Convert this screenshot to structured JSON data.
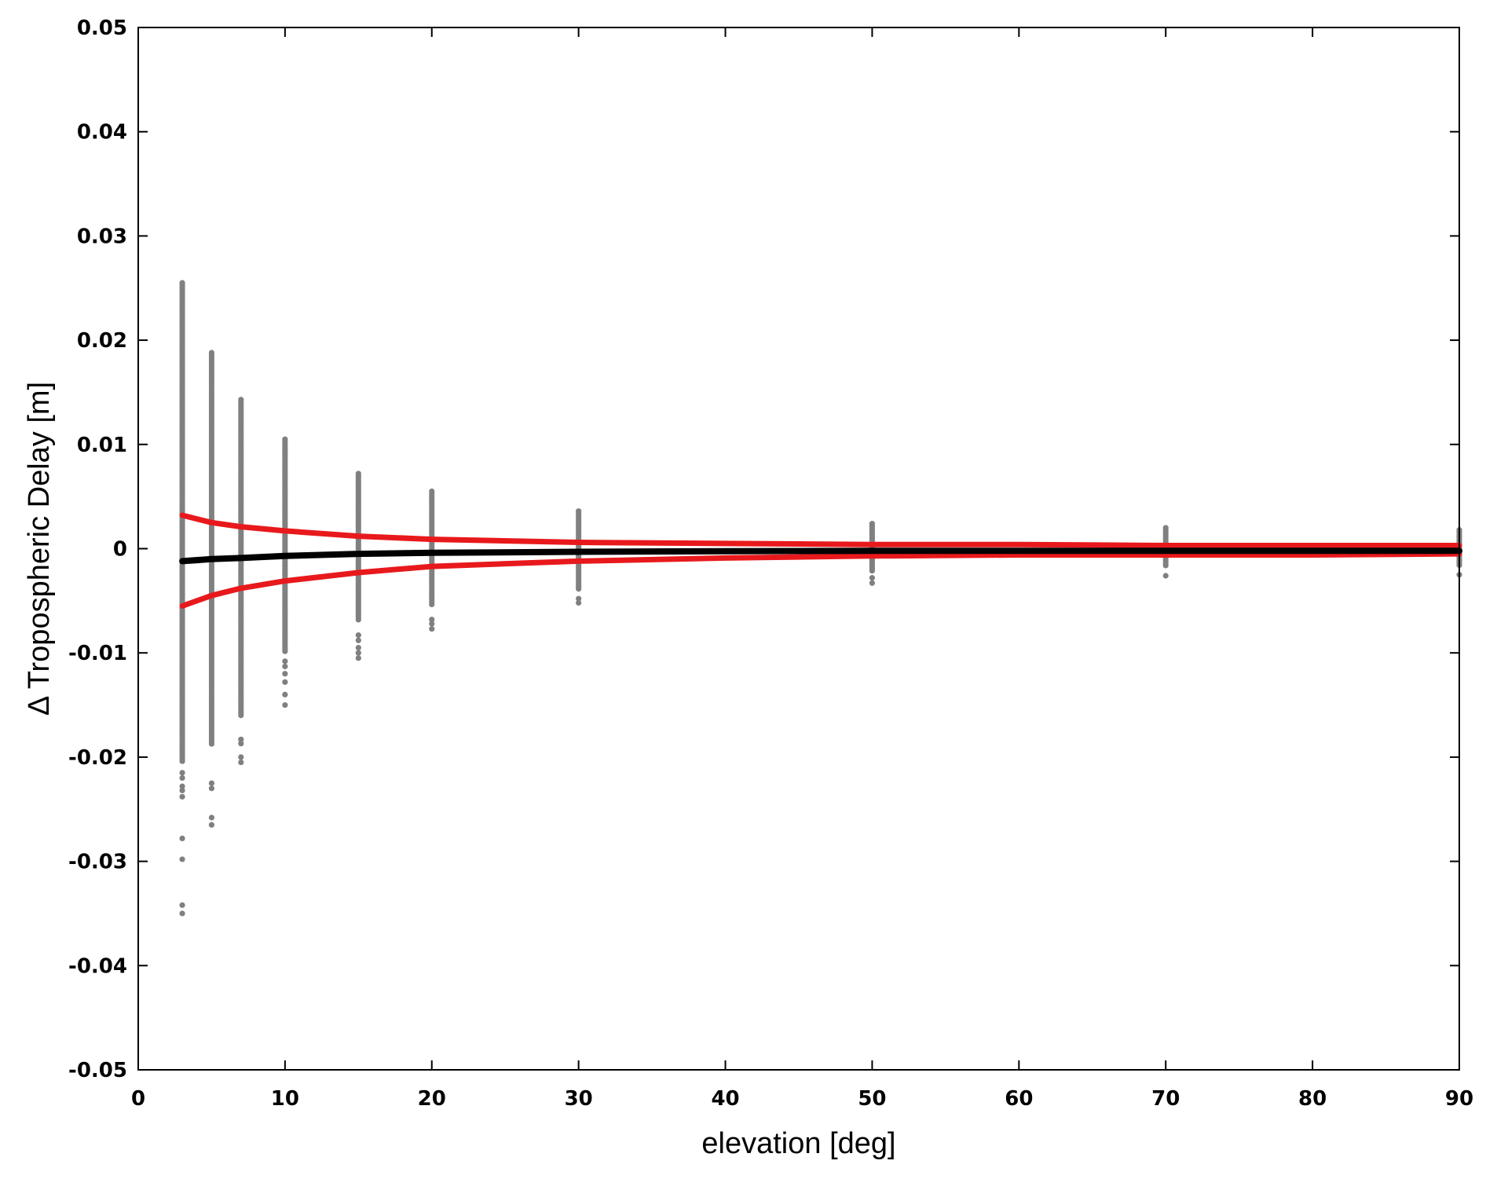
{
  "chart_data": {
    "type": "scatter",
    "xlabel": "elevation [deg]",
    "ylabel": "Δ Tropospheric Delay [m]",
    "xlim": [
      0,
      90
    ],
    "ylim": [
      -0.05,
      0.05
    ],
    "xticks": [
      0,
      10,
      20,
      30,
      40,
      50,
      60,
      70,
      80,
      90
    ],
    "yticks": [
      -0.05,
      -0.04,
      -0.03,
      -0.02,
      -0.01,
      0,
      0.01,
      0.02,
      0.03,
      0.04,
      0.05
    ],
    "xtick_labels": [
      "0",
      "10",
      "20",
      "30",
      "40",
      "50",
      "60",
      "70",
      "80",
      "90"
    ],
    "ytick_labels": [
      "-0.05",
      "-0.04",
      "-0.03",
      "-0.02",
      "-0.01",
      "0",
      "0.01",
      "0.02",
      "0.03",
      "0.04",
      "0.05"
    ],
    "grid": false,
    "colors": {
      "scatter": "#808080",
      "mean": "#000000",
      "bounds": "#e8191c"
    },
    "scatter_columns": [
      {
        "x": 3,
        "dense_min": -0.0205,
        "dense_max": 0.0255,
        "outliers": [
          -0.0215,
          -0.022,
          -0.0228,
          -0.0232,
          -0.0238,
          -0.0278,
          -0.0298,
          -0.0342,
          -0.035
        ]
      },
      {
        "x": 5,
        "dense_min": -0.0188,
        "dense_max": 0.0188,
        "outliers": [
          -0.0225,
          -0.023,
          -0.0258,
          -0.0265
        ]
      },
      {
        "x": 7,
        "dense_min": -0.016,
        "dense_max": 0.0143,
        "outliers": [
          -0.0183,
          -0.0187,
          -0.02,
          -0.0205
        ]
      },
      {
        "x": 10,
        "dense_min": -0.01,
        "dense_max": 0.0105,
        "outliers": [
          -0.0108,
          -0.0113,
          -0.012,
          -0.0128,
          -0.014,
          -0.015
        ]
      },
      {
        "x": 15,
        "dense_min": -0.007,
        "dense_max": 0.0072,
        "outliers": [
          -0.0083,
          -0.0088,
          -0.0095,
          -0.01,
          -0.0105
        ]
      },
      {
        "x": 20,
        "dense_min": -0.0055,
        "dense_max": 0.0055,
        "outliers": [
          -0.0068,
          -0.0072,
          -0.0077
        ]
      },
      {
        "x": 30,
        "dense_min": -0.004,
        "dense_max": 0.0036,
        "outliers": [
          -0.0048,
          -0.0052
        ]
      },
      {
        "x": 50,
        "dense_min": -0.0022,
        "dense_max": 0.0024,
        "outliers": [
          -0.0028,
          -0.0033
        ]
      },
      {
        "x": 70,
        "dense_min": -0.0018,
        "dense_max": 0.002,
        "outliers": [
          -0.0026
        ]
      },
      {
        "x": 90,
        "dense_min": -0.0018,
        "dense_max": 0.0018,
        "outliers": [
          -0.0025
        ]
      }
    ],
    "series": [
      {
        "role": "mean",
        "x": [
          3,
          5,
          7,
          10,
          15,
          20,
          30,
          40,
          50,
          60,
          70,
          80,
          90
        ],
        "y": [
          -0.0012,
          -0.001,
          -0.0009,
          -0.0007,
          -0.0005,
          -0.0004,
          -0.0003,
          -0.00025,
          -0.0002,
          -0.0002,
          -0.0002,
          -0.0002,
          -0.0002
        ]
      },
      {
        "role": "upper",
        "x": [
          3,
          5,
          7,
          10,
          15,
          20,
          30,
          40,
          50,
          60,
          70,
          80,
          90
        ],
        "y": [
          0.0032,
          0.0025,
          0.0021,
          0.0017,
          0.0012,
          0.0009,
          0.0006,
          0.0005,
          0.0004,
          0.0004,
          0.0003,
          0.0003,
          0.0003
        ]
      },
      {
        "role": "lower",
        "x": [
          3,
          5,
          7,
          10,
          15,
          20,
          30,
          40,
          50,
          60,
          70,
          80,
          90
        ],
        "y": [
          -0.0055,
          -0.0045,
          -0.0038,
          -0.0031,
          -0.0023,
          -0.0017,
          -0.0012,
          -0.0009,
          -0.0007,
          -0.0006,
          -0.0006,
          -0.0006,
          -0.0005
        ]
      }
    ]
  }
}
